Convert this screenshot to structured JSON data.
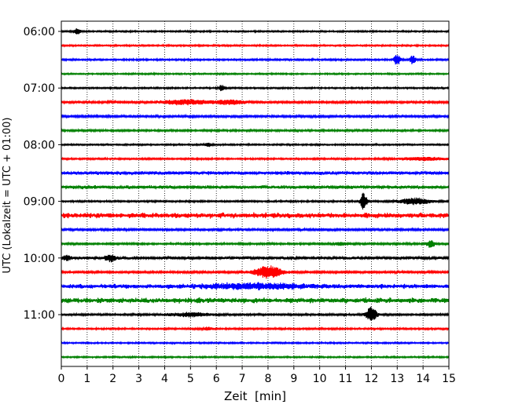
{
  "chart_data": {
    "type": "line",
    "title": "",
    "xlabel": "Zeit  [min]",
    "ylabel": "UTC (Lokalzeit = UTC + 01:00)",
    "xlim": [
      0,
      15
    ],
    "x_ticks": [
      0,
      1,
      2,
      3,
      4,
      5,
      6,
      7,
      8,
      9,
      10,
      11,
      12,
      13,
      14,
      15
    ],
    "x_tick_labels": [
      "0",
      "1",
      "2",
      "3",
      "4",
      "5",
      "6",
      "7",
      "8",
      "9",
      "10",
      "11",
      "12",
      "13",
      "14",
      "15"
    ],
    "y_tick_labels": [
      "06:00",
      "07:00",
      "08:00",
      "09:00",
      "10:00",
      "11:00"
    ],
    "y_tick_rows": [
      0,
      4,
      8,
      12,
      16,
      20
    ],
    "grid_x": "dotted vertical lines at each minute",
    "trace_interval_minutes": 15,
    "trace_colors": [
      "#000000",
      "#ff0000",
      "#0000ff",
      "#008000"
    ],
    "traces": [
      {
        "start": "06:00",
        "color": "#000000",
        "noise": 0.8,
        "events": [
          {
            "t": 0.6,
            "a": 3.5,
            "w": 0.15
          }
        ]
      },
      {
        "start": "06:15",
        "color": "#ff0000",
        "noise": 0.8,
        "events": []
      },
      {
        "start": "06:30",
        "color": "#0000ff",
        "noise": 0.9,
        "events": [
          {
            "t": 13.0,
            "a": 7,
            "w": 0.12
          },
          {
            "t": 13.6,
            "a": 6,
            "w": 0.1
          }
        ]
      },
      {
        "start": "06:45",
        "color": "#008000",
        "noise": 0.8,
        "events": []
      },
      {
        "start": "07:00",
        "color": "#000000",
        "noise": 0.8,
        "events": [
          {
            "t": 6.2,
            "a": 4,
            "w": 0.1
          }
        ]
      },
      {
        "start": "07:15",
        "color": "#ff0000",
        "noise": 1.2,
        "events": [
          {
            "t": 4.8,
            "a": 3,
            "w": 0.8
          },
          {
            "t": 6.5,
            "a": 2.5,
            "w": 0.6
          }
        ]
      },
      {
        "start": "07:30",
        "color": "#0000ff",
        "noise": 1.2,
        "events": []
      },
      {
        "start": "07:45",
        "color": "#008000",
        "noise": 1.0,
        "events": []
      },
      {
        "start": "08:00",
        "color": "#000000",
        "noise": 0.8,
        "events": [
          {
            "t": 5.7,
            "a": 2.5,
            "w": 0.15
          }
        ]
      },
      {
        "start": "08:15",
        "color": "#ff0000",
        "noise": 0.9,
        "events": [
          {
            "t": 14.0,
            "a": 1.8,
            "w": 1.0
          }
        ]
      },
      {
        "start": "08:30",
        "color": "#0000ff",
        "noise": 2.0,
        "events": []
      },
      {
        "start": "08:45",
        "color": "#008000",
        "noise": 2.0,
        "events": []
      },
      {
        "start": "09:00",
        "color": "#000000",
        "noise": 0.9,
        "events": [
          {
            "t": 11.7,
            "a": 11,
            "w": 0.12
          },
          {
            "t": 13.7,
            "a": 4,
            "w": 0.6
          }
        ]
      },
      {
        "start": "09:15",
        "color": "#ff0000",
        "noise": 3.0,
        "events": []
      },
      {
        "start": "09:30",
        "color": "#0000ff",
        "noise": 1.2,
        "events": []
      },
      {
        "start": "09:45",
        "color": "#008000",
        "noise": 1.0,
        "events": [
          {
            "t": 14.3,
            "a": 5,
            "w": 0.15
          },
          {
            "t": 10.8,
            "a": 2,
            "w": 0.2
          }
        ]
      },
      {
        "start": "10:00",
        "color": "#000000",
        "noise": 1.5,
        "events": [
          {
            "t": 1.9,
            "a": 4,
            "w": 0.2
          },
          {
            "t": 0.2,
            "a": 2.5,
            "w": 0.2
          }
        ]
      },
      {
        "start": "10:15",
        "color": "#ff0000",
        "noise": 1.2,
        "events": [
          {
            "t": 8.0,
            "a": 8,
            "w": 0.5
          }
        ]
      },
      {
        "start": "10:30",
        "color": "#0000ff",
        "noise": 2.5,
        "events": [
          {
            "t": 7.5,
            "a": 2.5,
            "w": 2.0
          }
        ]
      },
      {
        "start": "10:45",
        "color": "#008000",
        "noise": 3.0,
        "events": []
      },
      {
        "start": "11:00",
        "color": "#000000",
        "noise": 1.0,
        "events": [
          {
            "t": 12.0,
            "a": 10,
            "w": 0.2
          },
          {
            "t": 5.0,
            "a": 2.5,
            "w": 0.8
          }
        ]
      },
      {
        "start": "11:15",
        "color": "#ff0000",
        "noise": 0.9,
        "events": [
          {
            "t": 5.7,
            "a": 2,
            "w": 0.2
          }
        ]
      },
      {
        "start": "11:30",
        "color": "#0000ff",
        "noise": 0.8,
        "events": []
      },
      {
        "start": "11:45",
        "color": "#008000",
        "noise": 0.8,
        "events": []
      }
    ]
  }
}
